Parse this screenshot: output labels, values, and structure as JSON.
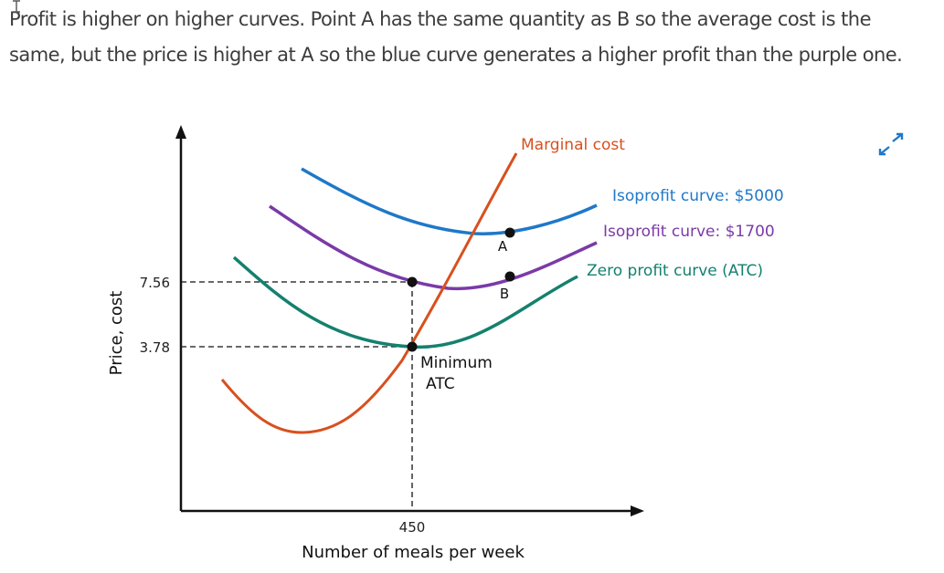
{
  "caption": "Profit is higher on higher curves. Point A has the same quantity as B so the average cost is the same, but the price is higher at A so the blue curve generates a higher profit than the purple one.",
  "icons": {
    "cursor": "text-cursor-icon",
    "expand": "expand-icon"
  },
  "colors": {
    "blue": "#1f78c8",
    "purple": "#7a3aa8",
    "teal": "#15806e",
    "orange": "#d8501e",
    "axis": "#111111"
  },
  "chart_data": {
    "type": "line",
    "xlabel": "Number of meals per week",
    "ylabel": "Price, cost",
    "x_ticks": [
      {
        "value": 450,
        "label": "450"
      }
    ],
    "y_ticks": [
      {
        "value": 7.56,
        "label": "7.56"
      },
      {
        "value": 3.78,
        "label": "3.78"
      }
    ],
    "series": [
      {
        "name": "Marginal cost",
        "color": "#d8501e"
      },
      {
        "name": "Isoprofit curve: $5000",
        "color": "#1f78c8"
      },
      {
        "name": "Isoprofit curve: $1700",
        "color": "#7a3aa8"
      },
      {
        "name": "Zero profit curve (ATC)",
        "color": "#15806e"
      }
    ],
    "points": [
      {
        "label": "A",
        "on": "Isoprofit curve: $5000"
      },
      {
        "label": "B",
        "on": "Isoprofit curve: $1700"
      }
    ],
    "annotations": [
      "Minimum",
      "ATC"
    ]
  }
}
